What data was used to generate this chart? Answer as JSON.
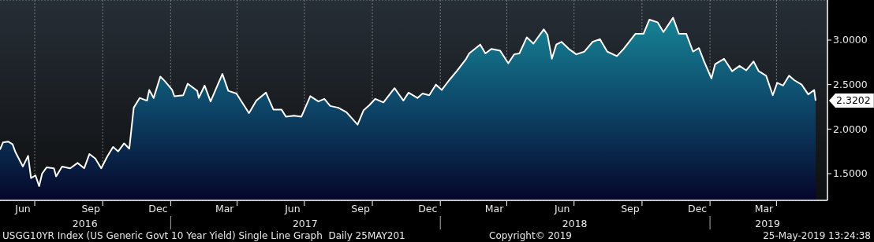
{
  "chart_data": {
    "type": "area",
    "x": [
      "2016-05-15",
      "2016-05-19",
      "2016-05-26",
      "2016-06-01",
      "2016-06-05",
      "2016-06-15",
      "2016-06-22",
      "2016-06-26",
      "2016-07-02",
      "2016-07-07",
      "2016-07-11",
      "2016-07-17",
      "2016-07-27",
      "2016-07-30",
      "2016-08-07",
      "2016-08-18",
      "2016-08-28",
      "2016-09-06",
      "2016-09-13",
      "2016-09-21",
      "2016-09-29",
      "2016-10-07",
      "2016-10-15",
      "2016-10-22",
      "2016-10-30",
      "2016-11-06",
      "2016-11-12",
      "2016-11-20",
      "2016-11-30",
      "2016-12-03",
      "2016-12-09",
      "2016-12-18",
      "2016-12-24",
      "2017-01-03",
      "2017-01-06",
      "2017-01-18",
      "2017-01-24",
      "2017-02-06",
      "2017-02-08",
      "2017-02-16",
      "2017-02-24",
      "2017-03-12",
      "2017-03-20",
      "2017-03-31",
      "2017-04-17",
      "2017-04-27",
      "2017-05-10",
      "2017-05-20",
      "2017-05-31",
      "2017-06-06",
      "2017-06-17",
      "2017-06-27",
      "2017-07-09",
      "2017-07-20",
      "2017-07-28",
      "2017-08-05",
      "2017-08-16",
      "2017-08-27",
      "2017-09-11",
      "2017-09-19",
      "2017-09-27",
      "2017-10-05",
      "2017-10-16",
      "2017-10-31",
      "2017-11-12",
      "2017-11-19",
      "2017-12-01",
      "2017-12-08",
      "2017-12-17",
      "2017-12-26",
      "2018-01-03",
      "2018-01-13",
      "2018-01-24",
      "2018-02-05",
      "2018-02-09",
      "2018-02-24",
      "2018-03-03",
      "2018-03-11",
      "2018-03-23",
      "2018-04-03",
      "2018-04-11",
      "2018-04-18",
      "2018-04-28",
      "2018-05-07",
      "2018-05-21",
      "2018-05-26",
      "2018-06-01",
      "2018-06-07",
      "2018-06-14",
      "2018-06-24",
      "2018-07-04",
      "2018-07-15",
      "2018-07-26",
      "2018-08-05",
      "2018-08-15",
      "2018-08-28",
      "2018-09-06",
      "2018-09-22",
      "2018-10-03",
      "2018-10-11",
      "2018-10-22",
      "2018-10-30",
      "2018-11-12",
      "2018-11-20",
      "2018-11-30",
      "2018-12-09",
      "2018-12-17",
      "2018-12-24",
      "2019-01-03",
      "2019-01-08",
      "2019-01-20",
      "2019-01-31",
      "2019-02-10",
      "2019-02-19",
      "2019-03-01",
      "2019-03-08",
      "2019-03-18",
      "2019-03-27",
      "2019-04-02",
      "2019-04-10",
      "2019-04-18",
      "2019-04-25",
      "2019-05-05",
      "2019-05-14",
      "2019-05-22",
      "2019-05-24"
    ],
    "series": [
      {
        "color": "#ffffff",
        "values": [
          1.77,
          1.85,
          1.86,
          1.83,
          1.74,
          1.58,
          1.7,
          1.45,
          1.48,
          1.36,
          1.5,
          1.57,
          1.56,
          1.47,
          1.58,
          1.56,
          1.62,
          1.56,
          1.72,
          1.67,
          1.56,
          1.69,
          1.8,
          1.75,
          1.84,
          1.78,
          2.24,
          2.35,
          2.32,
          2.44,
          2.35,
          2.59,
          2.54,
          2.44,
          2.37,
          2.38,
          2.51,
          2.43,
          2.35,
          2.49,
          2.31,
          2.62,
          2.43,
          2.4,
          2.18,
          2.32,
          2.41,
          2.22,
          2.22,
          2.14,
          2.15,
          2.14,
          2.37,
          2.31,
          2.34,
          2.26,
          2.24,
          2.19,
          2.05,
          2.21,
          2.27,
          2.34,
          2.3,
          2.46,
          2.32,
          2.41,
          2.35,
          2.4,
          2.38,
          2.5,
          2.44,
          2.55,
          2.66,
          2.79,
          2.85,
          2.95,
          2.85,
          2.9,
          2.88,
          2.74,
          2.84,
          2.85,
          3.03,
          2.96,
          3.12,
          3.06,
          2.79,
          2.95,
          2.98,
          2.9,
          2.84,
          2.87,
          2.98,
          3.01,
          2.87,
          2.82,
          2.9,
          3.07,
          3.07,
          3.23,
          3.2,
          3.09,
          3.25,
          3.07,
          3.07,
          2.87,
          2.91,
          2.76,
          2.57,
          2.73,
          2.79,
          2.65,
          2.71,
          2.66,
          2.76,
          2.65,
          2.6,
          2.38,
          2.52,
          2.49,
          2.6,
          2.55,
          2.5,
          2.39,
          2.44,
          2.3202
        ]
      }
    ],
    "xlim": [
      "2016-05-15",
      "2019-06-09"
    ],
    "xticks": [
      {
        "value": "2016-06-15",
        "label": "Jun"
      },
      {
        "value": "2016-07-01",
        "label": null
      },
      {
        "value": "2016-09-15",
        "label": "Sep"
      },
      {
        "value": "2016-10-01",
        "label": null
      },
      {
        "value": "2016-12-15",
        "label": "Dec"
      },
      {
        "value": "2017-01-01",
        "label": null
      },
      {
        "value": "2017-03-15",
        "label": "Mar"
      },
      {
        "value": "2017-04-01",
        "label": null
      },
      {
        "value": "2017-06-15",
        "label": "Jun"
      },
      {
        "value": "2017-07-01",
        "label": null
      },
      {
        "value": "2017-09-15",
        "label": "Sep"
      },
      {
        "value": "2017-10-01",
        "label": null
      },
      {
        "value": "2017-12-15",
        "label": "Dec"
      },
      {
        "value": "2018-01-01",
        "label": null
      },
      {
        "value": "2018-03-15",
        "label": "Mar"
      },
      {
        "value": "2018-04-01",
        "label": null
      },
      {
        "value": "2018-06-15",
        "label": "Jun"
      },
      {
        "value": "2018-07-01",
        "label": null
      },
      {
        "value": "2018-09-15",
        "label": "Sep"
      },
      {
        "value": "2018-10-01",
        "label": null
      },
      {
        "value": "2018-12-15",
        "label": "Dec"
      },
      {
        "value": "2019-01-01",
        "label": null
      },
      {
        "value": "2019-03-15",
        "label": "Mar"
      },
      {
        "value": "2019-04-01",
        "label": null
      }
    ],
    "x2lim": [
      "2016-05-15",
      "2019-06-09"
    ],
    "x2ticks": [
      {
        "value": "2016-09-07",
        "label": "2016"
      },
      {
        "value": "2017-01-01",
        "label": null
      },
      {
        "value": "2017-07-02",
        "label": "2017"
      },
      {
        "value": "2018-01-01",
        "label": null
      },
      {
        "value": "2018-07-02",
        "label": "2018"
      },
      {
        "value": "2019-01-01",
        "label": null
      },
      {
        "value": "2019-03-20",
        "label": "2019"
      }
    ],
    "ylim": [
      1.2,
      3.45
    ],
    "yticks": [
      {
        "value": 1.5,
        "label": "1.5000"
      },
      {
        "value": 2,
        "label": "2.0000"
      },
      {
        "value": 2.5,
        "label": "2.5000"
      },
      {
        "value": 3,
        "label": "3.0000"
      }
    ],
    "grid": true,
    "annotations": [
      "USGG10YR Index (US Generic Govt 10 Year Yield) Single Line Graph  Daily 25MAY201",
      "Copyright© 2019",
      "25-May-2019 13:24:38",
      {
        "text": "2.3202",
        "x": "2019-05-24",
        "y": 2.3202
      }
    ]
  }
}
